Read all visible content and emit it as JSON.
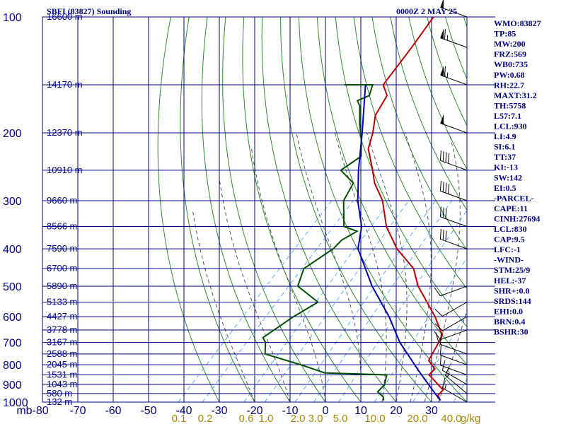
{
  "header": {
    "station": "SBFI (83827) Sounding",
    "time": "0000Z  2 MAY 25"
  },
  "colors": {
    "frame": "#00008b",
    "isobar": "#00008b",
    "isotherm": "#00008b",
    "dry_adiabat": "#2e8b2e",
    "moist_adiabat": "#555555",
    "mixing_ratio": "#5fa8ff",
    "temperature": "#c00000",
    "dewpoint": "#005000",
    "parcel": "#0000b0",
    "text": "#00008b",
    "mr_text": "#a58a00"
  },
  "indices": [
    "WMO:83827",
    "TP:85",
    "MW:200",
    "FRZ:569",
    "WB0:735",
    "PW:0.68",
    "RH:22.7",
    "MAXT:31.2",
    "TH:5758",
    "L57:7.1",
    "LCL:930",
    "LI:4.9",
    "SI:6.1",
    "TT:37",
    "KI:-13",
    "SW:142",
    "EI:0.5",
    "-PARCEL-",
    "CAPE:11",
    "CINH:27694",
    "LCL:830",
    "CAP:9.5",
    "LFC:-1",
    "-WIND-",
    "STM:25/9",
    "HEL:-37",
    "SHR+:0.0",
    "SRDS:144",
    "EHI:0.0",
    "BRN:0.4",
    "BSHR:30"
  ],
  "chart_data": {
    "type": "line",
    "chart_kind": "Skew-T log-P sounding",
    "y_axis": {
      "label_units": "mb",
      "scale": "log",
      "ylim": [
        1000,
        100
      ],
      "ticks": [
        1000,
        900,
        800,
        700,
        600,
        500,
        400,
        300,
        200,
        100
      ]
    },
    "x_axis": {
      "xlim": [
        -80,
        30
      ],
      "ticks": [
        -80,
        -70,
        -60,
        -50,
        -40,
        -30,
        -20,
        -10,
        0,
        10,
        20,
        30
      ],
      "tick_labels": [
        "mb-80",
        "-70",
        "-60",
        "-50",
        "-40",
        "-30",
        "-20",
        "-10",
        "0",
        "10",
        "20",
        "30"
      ]
    },
    "height_labels": [
      {
        "p": 100,
        "label": "16600 m"
      },
      {
        "p": 150,
        "label": "14170 m"
      },
      {
        "p": 200,
        "label": "12370 m"
      },
      {
        "p": 250,
        "label": "10910 m"
      },
      {
        "p": 300,
        "label": "9660 m"
      },
      {
        "p": 350,
        "label": "8566 m"
      },
      {
        "p": 400,
        "label": "7590 m"
      },
      {
        "p": 450,
        "label": "6700 m"
      },
      {
        "p": 500,
        "label": "5890 m"
      },
      {
        "p": 550,
        "label": "5133 m"
      },
      {
        "p": 600,
        "label": "4427 m"
      },
      {
        "p": 650,
        "label": "3778 m"
      },
      {
        "p": 700,
        "label": "3167 m"
      },
      {
        "p": 750,
        "label": "2588 m"
      },
      {
        "p": 800,
        "label": "2045 m"
      },
      {
        "p": 850,
        "label": "1531 m"
      },
      {
        "p": 900,
        "label": "1043 m"
      },
      {
        "p": 950,
        "label": "580 m"
      },
      {
        "p": 1000,
        "label": "132 m"
      }
    ],
    "mixing_ratio_labels": [
      "0.1",
      "0.2",
      "0.6",
      "1.0",
      "2.0",
      "3.0",
      "5.0",
      "10.0",
      "20.0",
      "40.0",
      "g/kg"
    ],
    "series": [
      {
        "name": "temperature",
        "points": [
          [
            990,
            32
          ],
          [
            960,
            30
          ],
          [
            930,
            30
          ],
          [
            850,
            22
          ],
          [
            820,
            22
          ],
          [
            780,
            18
          ],
          [
            740,
            17
          ],
          [
            700,
            16
          ],
          [
            670,
            15
          ],
          [
            600,
            8
          ],
          [
            500,
            -5
          ],
          [
            450,
            -11
          ],
          [
            400,
            -21
          ],
          [
            350,
            -30
          ],
          [
            300,
            -38
          ],
          [
            270,
            -45
          ],
          [
            250,
            -49
          ],
          [
            220,
            -56
          ],
          [
            200,
            -59
          ],
          [
            180,
            -63
          ],
          [
            160,
            -65
          ],
          [
            150,
            -69
          ],
          [
            120,
            -71
          ],
          [
            100,
            -73
          ]
        ]
      },
      {
        "name": "dewpoint",
        "points": [
          [
            990,
            16
          ],
          [
            970,
            15
          ],
          [
            940,
            12
          ],
          [
            900,
            12
          ],
          [
            850,
            10
          ],
          [
            840,
            -8
          ],
          [
            800,
            -17
          ],
          [
            750,
            -30
          ],
          [
            700,
            -33
          ],
          [
            680,
            -35
          ],
          [
            600,
            -32
          ],
          [
            550,
            -29
          ],
          [
            500,
            -39
          ],
          [
            450,
            -42
          ],
          [
            400,
            -39
          ],
          [
            380,
            -39
          ],
          [
            360,
            -37
          ],
          [
            350,
            -42
          ],
          [
            300,
            -49
          ],
          [
            270,
            -51
          ],
          [
            250,
            -58
          ],
          [
            230,
            -56
          ],
          [
            220,
            -58
          ],
          [
            210,
            -60
          ],
          [
            190,
            -65
          ],
          [
            170,
            -70
          ],
          [
            165,
            -72
          ],
          [
            160,
            -70
          ],
          [
            150,
            -72
          ],
          [
            150,
            -80
          ]
        ]
      },
      {
        "name": "parcel",
        "points": [
          [
            990,
            32
          ],
          [
            930,
            27
          ],
          [
            830,
            18
          ],
          [
            700,
            5
          ],
          [
            600,
            -5
          ],
          [
            500,
            -18
          ],
          [
            400,
            -32
          ],
          [
            350,
            -37
          ],
          [
            300,
            -45
          ],
          [
            250,
            -53
          ],
          [
            200,
            -62
          ],
          [
            150,
            -74
          ]
        ]
      }
    ],
    "wind_barbs": [
      {
        "p": 1000,
        "speed_kt": 15,
        "dir_deg": 300
      },
      {
        "p": 950,
        "speed_kt": 15,
        "dir_deg": 310
      },
      {
        "p": 900,
        "speed_kt": 10,
        "dir_deg": 300
      },
      {
        "p": 850,
        "speed_kt": 10,
        "dir_deg": 290
      },
      {
        "p": 800,
        "speed_kt": 10,
        "dir_deg": 290
      },
      {
        "p": 750,
        "speed_kt": 10,
        "dir_deg": 290
      },
      {
        "p": 700,
        "speed_kt": 10,
        "dir_deg": 270
      },
      {
        "p": 650,
        "speed_kt": 10,
        "dir_deg": 250
      },
      {
        "p": 600,
        "speed_kt": 10,
        "dir_deg": 240
      },
      {
        "p": 550,
        "speed_kt": 10,
        "dir_deg": 240
      },
      {
        "p": 500,
        "speed_kt": 10,
        "dir_deg": 250
      },
      {
        "p": 400,
        "speed_kt": 30,
        "dir_deg": 290
      },
      {
        "p": 350,
        "speed_kt": 30,
        "dir_deg": 290
      },
      {
        "p": 300,
        "speed_kt": 40,
        "dir_deg": 290
      },
      {
        "p": 250,
        "speed_kt": 40,
        "dir_deg": 290
      },
      {
        "p": 200,
        "speed_kt": 50,
        "dir_deg": 290
      },
      {
        "p": 150,
        "speed_kt": 65,
        "dir_deg": 290
      },
      {
        "p": 120,
        "speed_kt": 65,
        "dir_deg": 290
      },
      {
        "p": 100,
        "speed_kt": 50,
        "dir_deg": 290
      }
    ]
  }
}
